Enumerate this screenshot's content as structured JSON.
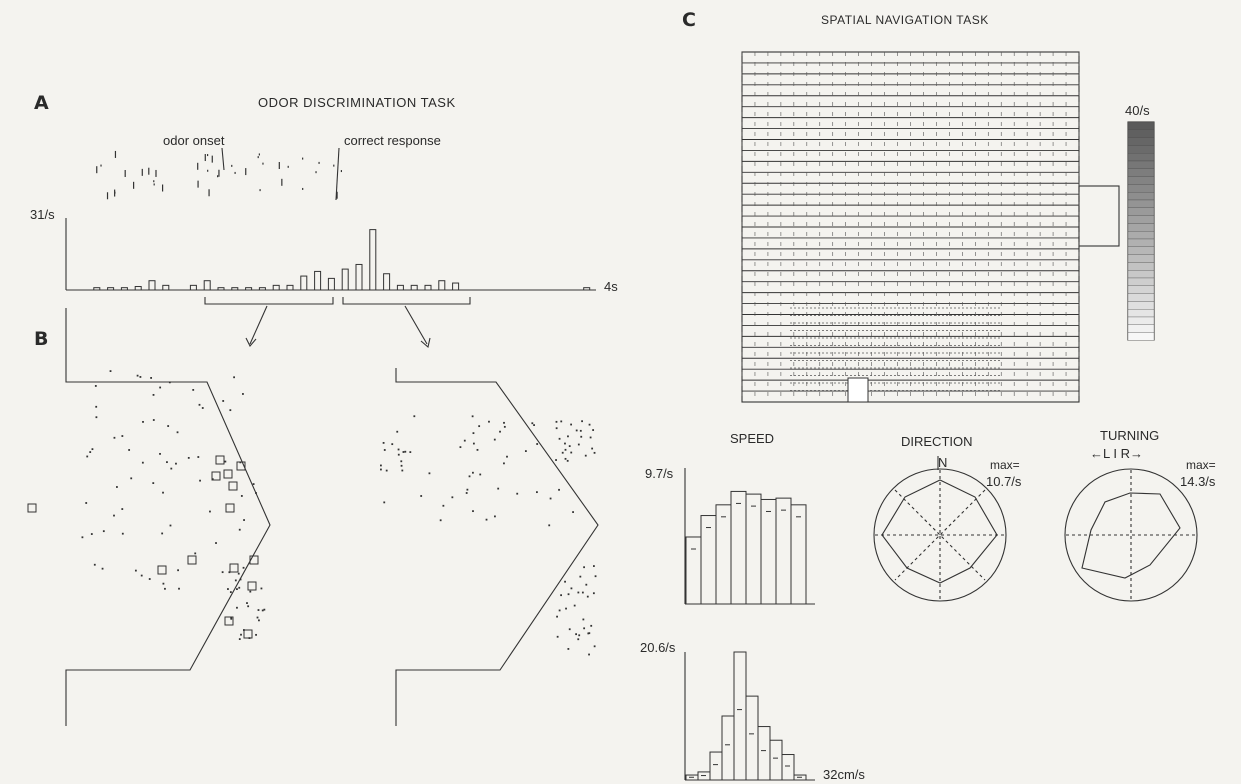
{
  "panels": {
    "a": "A",
    "b": "B",
    "c": "C"
  },
  "odor": {
    "title": "ODOR DISCRIMINATION TASK",
    "odor_onset": "odor onset",
    "correct_response": "correct response",
    "ymax": "31/s",
    "xmax": "4s"
  },
  "spatial": {
    "title": "SPATIAL NAVIGATION TASK",
    "scale_max": "40/s",
    "speed": {
      "title": "SPEED",
      "ymax": "9.7/s"
    },
    "direction": {
      "title": "DIRECTION",
      "north": "N",
      "max_label": "max=",
      "max_value": "10.7/s"
    },
    "turning": {
      "title": "TURNING",
      "lir": "←L I R→",
      "max_label": "max=",
      "max_value": "14.3/s"
    },
    "lower": {
      "ymax": "20.6/s",
      "xmax": "32cm/s"
    }
  },
  "chart_data": [
    {
      "type": "bar",
      "panel": "A",
      "description_key": "odor",
      "x": [
        0.2,
        0.4,
        0.6,
        0.8,
        1.0,
        1.2,
        1.6,
        1.8,
        2.0,
        2.2,
        2.4,
        2.6,
        2.8,
        3.0,
        3.2,
        3.4,
        3.6,
        3.8,
        4.0,
        4.2,
        4.4,
        4.6,
        4.8,
        5.0,
        5.2,
        5.4,
        7.3
      ],
      "values": [
        1,
        1,
        1,
        1.5,
        4,
        2,
        2,
        4,
        1,
        1,
        1,
        1,
        2,
        2,
        6,
        8,
        5,
        9,
        11,
        26,
        7,
        2,
        2,
        2,
        4,
        3,
        1
      ],
      "ylim": [
        0,
        31
      ],
      "ylabel": "31/s",
      "xlabel": "4s"
    },
    {
      "type": "bar",
      "panel": "C-speed",
      "values": [
        5.0,
        6.6,
        7.4,
        8.4,
        8.2,
        7.8,
        7.9,
        7.4
      ],
      "ylim": [
        0,
        9.7
      ],
      "ylabel": "9.7/s"
    },
    {
      "type": "bar",
      "panel": "C-lower",
      "values": [
        0.8,
        1.3,
        4.5,
        10.3,
        20.6,
        13.5,
        8.6,
        6.4,
        4.1,
        0.8
      ],
      "ylim": [
        0,
        20.6
      ],
      "ylabel": "20.6/s",
      "xlabel": "32cm/s"
    }
  ]
}
